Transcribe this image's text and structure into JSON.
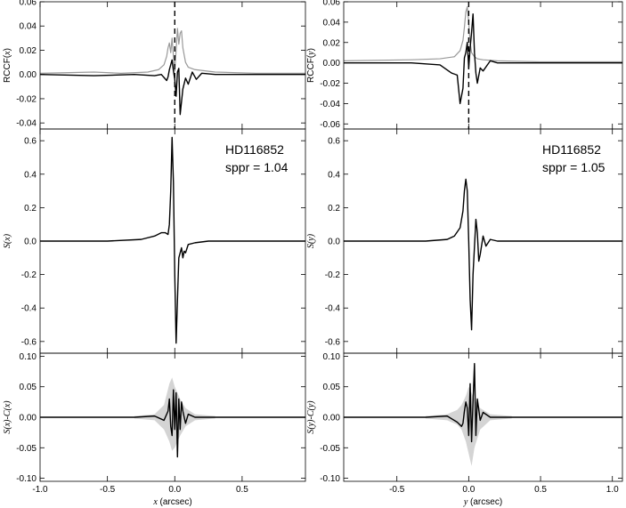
{
  "chart_data": [
    {
      "type": "line",
      "panel": "top-left",
      "ylabel_prefix": "RCCF(",
      "ylabel_var": "x",
      "ylabel_suffix": ")",
      "xlim": [
        -1.0,
        0.97
      ],
      "ylim": [
        -0.045,
        0.06
      ],
      "yticks": [
        "-0.04",
        "-0.02",
        "0.00",
        "0.02",
        "0.04",
        "0.06"
      ],
      "ytick_values": [
        -0.04,
        -0.02,
        0.0,
        0.02,
        0.04,
        0.06
      ],
      "vline": 0.0,
      "series": [
        {
          "color": "#999999",
          "x": [
            -1.0,
            -0.6,
            -0.4,
            -0.2,
            -0.12,
            -0.08,
            -0.06,
            -0.05,
            -0.04,
            -0.03,
            -0.02,
            -0.01,
            0.0,
            0.01,
            0.02,
            0.03,
            0.04,
            0.05,
            0.06,
            0.08,
            0.1,
            0.15,
            0.3,
            0.6,
            0.97
          ],
          "y": [
            0.001,
            0.002,
            0.001,
            0.002,
            0.004,
            0.008,
            0.015,
            0.022,
            0.026,
            0.018,
            0.03,
            0.015,
            0.003,
            0.02,
            0.038,
            0.025,
            0.034,
            0.036,
            0.022,
            0.01,
            0.006,
            0.004,
            0.002,
            0.001,
            0.001
          ]
        },
        {
          "color": "#000000",
          "x": [
            -1.0,
            -0.6,
            -0.3,
            -0.15,
            -0.1,
            -0.06,
            -0.05,
            -0.04,
            -0.03,
            -0.02,
            -0.01,
            0.0,
            0.01,
            0.02,
            0.03,
            0.04,
            0.06,
            0.08,
            0.1,
            0.13,
            0.16,
            0.2,
            0.3,
            0.6,
            0.97
          ],
          "y": [
            0.0,
            -0.001,
            0.0,
            -0.001,
            0.0,
            -0.005,
            -0.002,
            0.004,
            0.008,
            0.012,
            0.003,
            -0.004,
            -0.018,
            0.002,
            0.005,
            -0.033,
            -0.012,
            -0.003,
            -0.008,
            0.002,
            -0.004,
            0.001,
            0.0,
            0.0,
            0.0
          ]
        }
      ]
    },
    {
      "type": "line",
      "panel": "middle-left",
      "ylabel_prefix": "S(",
      "ylabel_var": "x",
      "ylabel_suffix": ")",
      "xlim": [
        -1.0,
        0.97
      ],
      "ylim": [
        -0.67,
        0.67
      ],
      "yticks": [
        "-0.6",
        "-0.4",
        "-0.2",
        "0.0",
        "0.2",
        "0.4",
        "0.6"
      ],
      "ytick_values": [
        -0.6,
        -0.4,
        -0.2,
        0.0,
        0.2,
        0.4,
        0.6
      ],
      "annotations": [
        "HD116852",
        "sppr = 1.04"
      ],
      "series": [
        {
          "color": "#000000",
          "x": [
            -1.0,
            -0.5,
            -0.25,
            -0.15,
            -0.1,
            -0.07,
            -0.05,
            -0.04,
            -0.03,
            -0.02,
            -0.01,
            0.0,
            0.01,
            0.02,
            0.03,
            0.05,
            0.06,
            0.07,
            0.08,
            0.1,
            0.15,
            0.25,
            0.5,
            0.97
          ],
          "y": [
            0.0,
            0.0,
            0.01,
            0.03,
            0.05,
            0.05,
            0.04,
            0.1,
            0.3,
            0.62,
            0.35,
            -0.2,
            -0.61,
            -0.35,
            -0.1,
            -0.04,
            -0.1,
            -0.06,
            -0.07,
            -0.02,
            -0.01,
            0.0,
            0.0,
            0.0
          ]
        }
      ]
    },
    {
      "type": "line",
      "panel": "bottom-left",
      "ylabel_prefix": "S(",
      "ylabel_var": "x",
      "ylabel_mid": ")-C(",
      "ylabel_var2": "x",
      "ylabel_suffix": ")",
      "xlim": [
        -1.0,
        0.97
      ],
      "ylim": [
        -0.105,
        0.105
      ],
      "yticks": [
        "-0.10",
        "-0.05",
        "0.00",
        "0.05",
        "0.10"
      ],
      "ytick_values": [
        -0.1,
        -0.05,
        0.0,
        0.05,
        0.1
      ],
      "xticks": [
        "-1.0",
        "-0.5",
        "0.0",
        "0.5"
      ],
      "xtick_values": [
        -1.0,
        -0.5,
        0.0,
        0.5
      ],
      "xlabel_var": "x",
      "xlabel_unit": " (arcsec)",
      "band": {
        "x": [
          -0.3,
          -0.15,
          -0.08,
          -0.04,
          -0.02,
          0.0,
          0.02,
          0.04,
          0.08,
          0.15,
          0.3
        ],
        "upper": [
          0.002,
          0.005,
          0.02,
          0.055,
          0.065,
          0.05,
          0.04,
          0.03,
          0.015,
          0.005,
          0.002
        ],
        "lower": [
          -0.002,
          -0.005,
          -0.02,
          -0.04,
          -0.055,
          -0.05,
          -0.04,
          -0.03,
          -0.015,
          -0.005,
          -0.002
        ]
      },
      "series": [
        {
          "color": "#000000",
          "x": [
            -1.0,
            -0.3,
            -0.15,
            -0.08,
            -0.05,
            -0.04,
            -0.03,
            -0.02,
            -0.01,
            0.0,
            0.01,
            0.02,
            0.03,
            0.04,
            0.05,
            0.06,
            0.08,
            0.1,
            0.15,
            0.3,
            0.97
          ],
          "y": [
            0.0,
            0.0,
            0.002,
            -0.005,
            0.01,
            0.03,
            -0.015,
            -0.03,
            0.045,
            -0.02,
            0.04,
            -0.065,
            0.03,
            -0.02,
            0.025,
            0.01,
            -0.01,
            0.005,
            0.0,
            0.0,
            0.0
          ]
        }
      ]
    },
    {
      "type": "line",
      "panel": "top-right",
      "ylabel_prefix": "RCCF(",
      "ylabel_var": "y",
      "ylabel_suffix": ")",
      "xlim": [
        -0.87,
        1.07
      ],
      "ylim": [
        -0.065,
        0.06
      ],
      "yticks": [
        "-0.06",
        "-0.04",
        "-0.02",
        "0.00",
        "0.02",
        "0.04",
        "0.06"
      ],
      "ytick_values": [
        -0.06,
        -0.04,
        -0.02,
        0.0,
        0.02,
        0.04,
        0.06
      ],
      "vline": 0.0,
      "series": [
        {
          "color": "#999999",
          "x": [
            -0.87,
            -0.4,
            -0.2,
            -0.1,
            -0.06,
            -0.04,
            -0.03,
            -0.02,
            -0.01,
            0.0,
            0.01,
            0.02,
            0.04,
            0.06,
            0.1,
            0.2,
            0.5,
            1.07
          ],
          "y": [
            0.002,
            0.003,
            0.004,
            0.006,
            0.012,
            0.022,
            0.035,
            0.05,
            0.055,
            0.04,
            0.02,
            0.01,
            0.006,
            0.004,
            0.003,
            0.002,
            0.001,
            0.001
          ]
        },
        {
          "color": "#000000",
          "x": [
            -0.87,
            -0.4,
            -0.2,
            -0.12,
            -0.08,
            -0.06,
            -0.04,
            -0.03,
            -0.02,
            -0.01,
            0.0,
            0.01,
            0.02,
            0.03,
            0.04,
            0.05,
            0.06,
            0.08,
            0.1,
            0.15,
            0.2,
            0.4,
            1.07
          ],
          "y": [
            0.0,
            0.0,
            -0.002,
            -0.01,
            -0.012,
            -0.04,
            -0.025,
            0.005,
            0.01,
            0.02,
            -0.005,
            0.015,
            0.03,
            0.048,
            0.01,
            -0.01,
            -0.02,
            -0.005,
            -0.008,
            0.002,
            0.0,
            0.0,
            0.0
          ]
        }
      ]
    },
    {
      "type": "line",
      "panel": "middle-right",
      "ylabel_prefix": "S(",
      "ylabel_var": "y",
      "ylabel_suffix": ")",
      "xlim": [
        -0.87,
        1.07
      ],
      "ylim": [
        -0.67,
        0.67
      ],
      "yticks": [
        "-0.6",
        "-0.4",
        "-0.2",
        "0.0",
        "0.2",
        "0.4",
        "0.6"
      ],
      "ytick_values": [
        -0.6,
        -0.4,
        -0.2,
        0.0,
        0.2,
        0.4,
        0.6
      ],
      "annotations": [
        "HD116852",
        "sppr = 1.05"
      ],
      "series": [
        {
          "color": "#000000",
          "x": [
            -0.87,
            -0.5,
            -0.3,
            -0.15,
            -0.1,
            -0.06,
            -0.04,
            -0.03,
            -0.02,
            -0.01,
            0.0,
            0.01,
            0.02,
            0.03,
            0.05,
            0.06,
            0.07,
            0.08,
            0.1,
            0.12,
            0.15,
            0.2,
            0.4,
            1.07
          ],
          "y": [
            0.0,
            0.0,
            0.0,
            0.01,
            0.03,
            0.08,
            0.18,
            0.3,
            0.37,
            0.3,
            0.0,
            -0.35,
            -0.53,
            -0.2,
            0.13,
            0.05,
            -0.12,
            -0.08,
            0.03,
            -0.03,
            0.01,
            0.0,
            0.0,
            0.0
          ]
        }
      ]
    },
    {
      "type": "line",
      "panel": "bottom-right",
      "ylabel_prefix": "S(",
      "ylabel_var": "y",
      "ylabel_mid": ")-C(",
      "ylabel_var2": "y",
      "ylabel_suffix": ")",
      "xlim": [
        -0.87,
        1.07
      ],
      "ylim": [
        -0.105,
        0.105
      ],
      "yticks": [
        "-0.10",
        "-0.05",
        "0.00",
        "0.05",
        "0.10"
      ],
      "ytick_values": [
        -0.1,
        -0.05,
        0.0,
        0.05,
        0.1
      ],
      "xticks": [
        "-0.5",
        "0.0",
        "0.5",
        "1.0"
      ],
      "xtick_values": [
        -0.5,
        0.0,
        0.5,
        1.0
      ],
      "xlabel_var": "y",
      "xlabel_unit": " (arcsec)",
      "band": {
        "x": [
          -0.3,
          -0.15,
          -0.08,
          -0.05,
          -0.02,
          0.0,
          0.02,
          0.04,
          0.08,
          0.15,
          0.3
        ],
        "upper": [
          0.002,
          0.005,
          0.012,
          0.02,
          0.035,
          0.05,
          0.04,
          0.03,
          0.015,
          0.005,
          0.002
        ],
        "lower": [
          -0.002,
          -0.005,
          -0.012,
          -0.02,
          -0.04,
          -0.06,
          -0.08,
          -0.05,
          -0.02,
          -0.005,
          -0.002
        ]
      },
      "series": [
        {
          "color": "#000000",
          "x": [
            -0.87,
            -0.3,
            -0.15,
            -0.08,
            -0.05,
            -0.04,
            -0.03,
            -0.02,
            -0.01,
            0.0,
            0.01,
            0.02,
            0.03,
            0.04,
            0.05,
            0.06,
            0.08,
            0.1,
            0.15,
            0.3,
            1.07
          ],
          "y": [
            0.0,
            0.0,
            0.002,
            -0.008,
            -0.015,
            -0.01,
            0.01,
            0.025,
            0.015,
            -0.03,
            0.055,
            -0.04,
            0.025,
            0.088,
            -0.03,
            0.03,
            -0.005,
            0.008,
            0.0,
            0.0,
            0.0
          ]
        }
      ]
    }
  ]
}
